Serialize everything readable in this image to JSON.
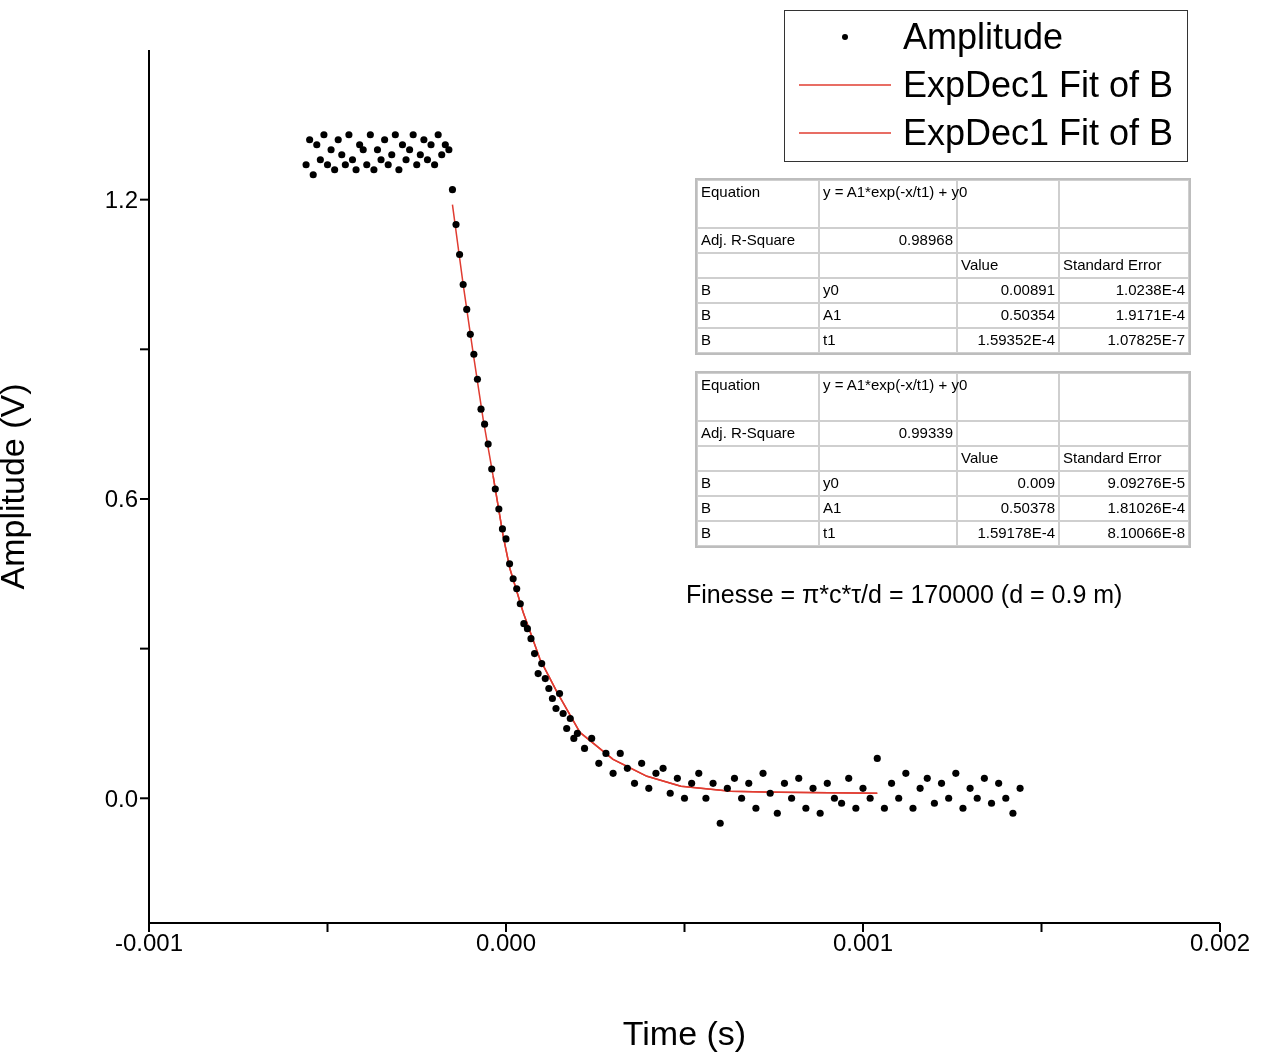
{
  "chart_data": {
    "type": "scatter",
    "xlabel": "Time (s)",
    "ylabel": "Amplitude (V)",
    "xlim": [
      -0.001,
      0.002
    ],
    "xticks": [
      -0.001,
      {
        "value": -0.0005,
        "label": null
      },
      {
        "value": 0,
        "label": "0.000"
      },
      {
        "value": 0.0005,
        "label": null
      },
      0.001,
      {
        "value": 0.0015,
        "label": null
      },
      0.002
    ],
    "ylim": [
      -0.25,
      1.5
    ],
    "yticks": [
      {
        "value": 0,
        "label": "0.0"
      },
      {
        "value": 0.3,
        "label": null
      },
      0.6,
      {
        "value": 0.9,
        "label": null
      },
      1.2
    ],
    "legend": "top right",
    "series": [
      {
        "name": "Amplitude",
        "type": "scatter",
        "marker": "circle",
        "color": "#000000",
        "x": [
          -0.00056,
          -0.00055,
          -0.00054,
          -0.00053,
          -0.00052,
          -0.00051,
          -0.0005,
          -0.00049,
          -0.00048,
          -0.00047,
          -0.00046,
          -0.00045,
          -0.00044,
          -0.00043,
          -0.00042,
          -0.00041,
          -0.0004,
          -0.00039,
          -0.00038,
          -0.00037,
          -0.00036,
          -0.00035,
          -0.00034,
          -0.00033,
          -0.00032,
          -0.00031,
          -0.0003,
          -0.00029,
          -0.00028,
          -0.00027,
          -0.00026,
          -0.00025,
          -0.00024,
          -0.00023,
          -0.00022,
          -0.00021,
          -0.0002,
          -0.00019,
          -0.00018,
          -0.00017,
          -0.00016,
          -0.00015,
          -0.00014,
          -0.00013,
          -0.00012,
          -0.00011,
          -0.0001,
          -9e-05,
          -8e-05,
          -7e-05,
          -6e-05,
          -5e-05,
          -4e-05,
          -3e-05,
          -2e-05,
          -1e-05,
          0,
          1e-05,
          2e-05,
          3e-05,
          4e-05,
          5e-05,
          6e-05,
          7e-05,
          8e-05,
          9e-05,
          0.0001,
          0.00011,
          0.00012,
          0.00013,
          0.00014,
          0.00015,
          0.00016,
          0.00017,
          0.00018,
          0.00019,
          0.0002,
          0.00022,
          0.00024,
          0.00026,
          0.00028,
          0.0003,
          0.00032,
          0.00034,
          0.00036,
          0.00038,
          0.0004,
          0.00042,
          0.00044,
          0.00046,
          0.00048,
          0.0005,
          0.00052,
          0.00054,
          0.00056,
          0.00058,
          0.0006,
          0.00062,
          0.00064,
          0.00066,
          0.00068,
          0.0007,
          0.00072,
          0.00074,
          0.00076,
          0.00078,
          0.0008,
          0.00082,
          0.00084,
          0.00086,
          0.00088,
          0.0009,
          0.00092,
          0.00094,
          0.00096,
          0.00098,
          0.001,
          0.00102,
          0.00104,
          0.00106,
          0.00108,
          0.0011,
          0.00112,
          0.00114,
          0.00116,
          0.00118,
          0.0012,
          0.00122,
          0.00124,
          0.00126,
          0.00128,
          0.0013,
          0.00132,
          0.00134,
          0.00136,
          0.00138,
          0.0014,
          0.00142,
          0.00144
        ],
        "values": [
          1.27,
          1.32,
          1.25,
          1.31,
          1.28,
          1.33,
          1.27,
          1.3,
          1.26,
          1.32,
          1.29,
          1.27,
          1.33,
          1.28,
          1.26,
          1.31,
          1.3,
          1.27,
          1.33,
          1.26,
          1.3,
          1.28,
          1.32,
          1.27,
          1.29,
          1.33,
          1.26,
          1.31,
          1.28,
          1.3,
          1.33,
          1.27,
          1.29,
          1.32,
          1.28,
          1.31,
          1.27,
          1.33,
          1.29,
          1.31,
          1.3,
          1.22,
          1.15,
          1.09,
          1.03,
          0.98,
          0.93,
          0.89,
          0.84,
          0.78,
          0.75,
          0.71,
          0.66,
          0.62,
          0.58,
          0.54,
          0.52,
          0.47,
          0.44,
          0.42,
          0.39,
          0.35,
          0.34,
          0.32,
          0.29,
          0.25,
          0.27,
          0.24,
          0.22,
          0.2,
          0.18,
          0.21,
          0.17,
          0.14,
          0.16,
          0.12,
          0.13,
          0.1,
          0.12,
          0.07,
          0.09,
          0.05,
          0.09,
          0.06,
          0.03,
          0.07,
          0.02,
          0.05,
          0.06,
          0.01,
          0.04,
          0,
          0.03,
          0.05,
          0,
          0.03,
          -0.05,
          0.02,
          0.04,
          0,
          0.03,
          -0.02,
          0.05,
          0.01,
          -0.03,
          0.03,
          0,
          0.04,
          -0.02,
          0.02,
          -0.03,
          0.03,
          0,
          -0.01,
          0.04,
          -0.02,
          0.02,
          0,
          0.08,
          -0.02,
          0.03,
          0,
          0.05,
          -0.02,
          0.02,
          0.04,
          -0.01,
          0.03,
          0,
          0.05,
          -0.02,
          0.02,
          0,
          0.04,
          -0.01,
          0.03,
          0,
          -0.03,
          0.02
        ]
      },
      {
        "name": "ExpDec1 Fit of B",
        "type": "line",
        "color": "#e03c31",
        "x": [
          -0.00015,
          -0.00012,
          -9.25e-05,
          -6.4e-05,
          -3.6e-05,
          -8e-06,
          1.1e-05,
          4.8e-05,
          9.5e-05,
          0.000143,
          0.000207,
          0.0003,
          0.000395,
          0.00049,
          0.00063,
          0.00077,
          0.00104
        ],
        "values": [
          1.19,
          1.03,
          0.895,
          0.76,
          0.646,
          0.526,
          0.46,
          0.373,
          0.279,
          0.213,
          0.132,
          0.078,
          0.044,
          0.024,
          0.014,
          0.012,
          0.01
        ]
      },
      {
        "name": "ExpDec1 Fit of B",
        "type": "line",
        "color": "#e03c31",
        "x": [
          -3.6e-05,
          -8e-06,
          1.1e-05,
          4.8e-05,
          9.5e-05,
          0.000143,
          0.000207,
          0.0003,
          0.000395,
          0.00049,
          0.00063,
          0.00077,
          0.00104
        ],
        "values": [
          0.646,
          0.526,
          0.46,
          0.373,
          0.279,
          0.213,
          0.132,
          0.078,
          0.044,
          0.024,
          0.014,
          0.012,
          0.01
        ]
      }
    ],
    "annotations": [
      "Equation",
      "y = A1*exp(-x/t1) + y0",
      "Adj. R-Square",
      "0.98968",
      "Value",
      "Standard Error",
      "B",
      "y0",
      "0.00891",
      "1.0238E-4",
      "B",
      "A1",
      "0.50354",
      "1.9171E-4",
      "B",
      "t1",
      "1.59352E-4",
      "1.07825E-7",
      "Equation",
      "y = A1*exp(-x/t1) + y0",
      "Adj. R-Square",
      "0.99339",
      "Value",
      "Standard Error",
      "B",
      "y0",
      "0.009",
      "9.09276E-5",
      "B",
      "A1",
      "0.50378",
      "1.81026E-4",
      "B",
      "t1",
      "1.59178E-4",
      "8.10066E-8",
      "Finesse = π*c*τ/d = 170000 (d = 0.9 m)"
    ]
  }
}
